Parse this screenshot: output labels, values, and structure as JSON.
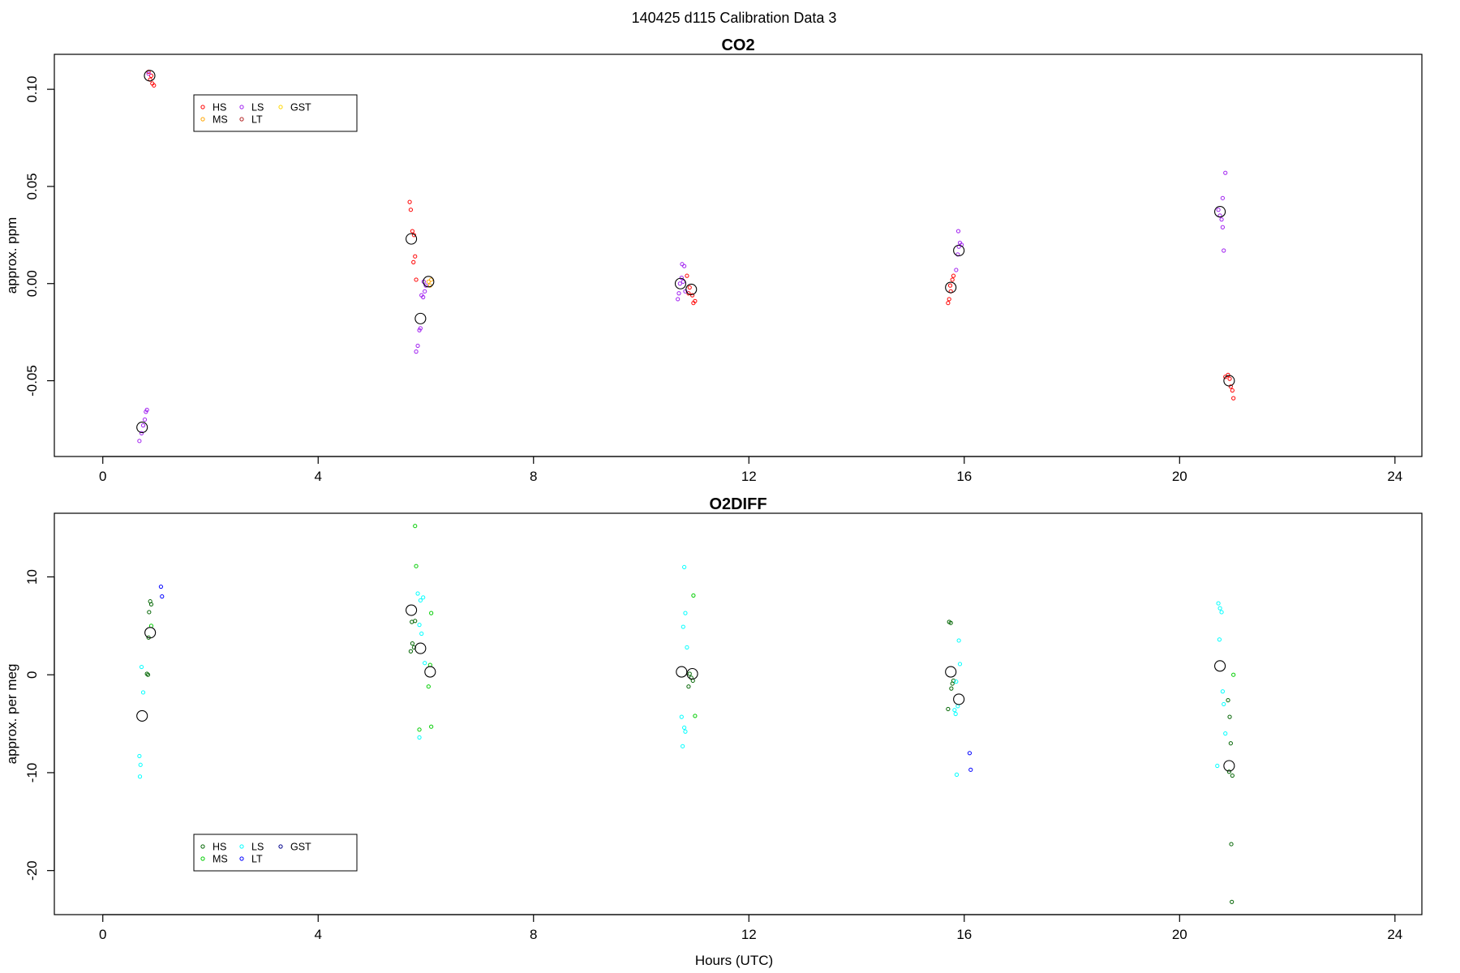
{
  "figure": {
    "super_title": "140425   d115   Calibration Data 3",
    "xlabel": "Hours (UTC)"
  },
  "chart_data": [
    {
      "type": "scatter",
      "title": "CO2",
      "xlabel": "",
      "ylabel": "approx. ppm",
      "xlim": [
        -0.9,
        24.5
      ],
      "ylim": [
        -0.089,
        0.118
      ],
      "xticks": [
        0,
        4,
        8,
        12,
        16,
        20,
        24
      ],
      "yticks": [
        -0.05,
        0.0,
        0.05,
        0.1
      ],
      "ytick_labels": [
        "-0.05",
        "0.00",
        "0.05",
        "0.10"
      ],
      "grid": false,
      "legend": {
        "placement": "top-left",
        "entries": [
          {
            "name": "HS",
            "color": "#ff0000"
          },
          {
            "name": "MS",
            "color": "#ffa500"
          },
          {
            "name": "LS",
            "color": "#a020f0"
          },
          {
            "name": "LT",
            "color": "#b22222"
          },
          {
            "name": "GST",
            "color": "#ffd700"
          }
        ]
      },
      "series": [
        {
          "name": "HS",
          "color": "#ff0000",
          "points": [
            [
              0.85,
              0.109
            ],
            [
              0.9,
              0.107
            ],
            [
              0.92,
              0.103
            ],
            [
              0.95,
              0.102
            ],
            [
              0.88,
              0.105
            ],
            [
              5.7,
              0.042
            ],
            [
              5.72,
              0.038
            ],
            [
              5.75,
              0.027
            ],
            [
              5.78,
              0.025
            ],
            [
              5.8,
              0.014
            ],
            [
              5.77,
              0.011
            ],
            [
              5.82,
              0.002
            ],
            [
              10.85,
              0.004
            ],
            [
              10.9,
              -0.002
            ],
            [
              10.95,
              -0.006
            ],
            [
              11.0,
              -0.009
            ],
            [
              10.97,
              -0.01
            ],
            [
              10.88,
              -0.005
            ],
            [
              15.7,
              -0.01
            ],
            [
              15.72,
              -0.008
            ],
            [
              15.75,
              -0.004
            ],
            [
              15.78,
              0.002
            ],
            [
              15.8,
              0.004
            ],
            [
              15.74,
              -0.001
            ],
            [
              20.85,
              -0.048
            ],
            [
              20.9,
              -0.047
            ],
            [
              20.93,
              -0.049
            ],
            [
              20.95,
              -0.053
            ],
            [
              20.98,
              -0.055
            ],
            [
              21.0,
              -0.059
            ]
          ]
        },
        {
          "name": "MS",
          "color": "#ffa500",
          "points": [
            [
              6.05,
              0.001
            ],
            [
              6.1,
              0.002
            ],
            [
              6.08,
              -0.001
            ]
          ]
        },
        {
          "name": "LS",
          "color": "#a020f0",
          "points": [
            [
              0.68,
              -0.081
            ],
            [
              0.72,
              -0.077
            ],
            [
              0.75,
              -0.073
            ],
            [
              0.78,
              -0.07
            ],
            [
              0.8,
              -0.066
            ],
            [
              0.82,
              -0.065
            ],
            [
              0.85,
              0.108
            ],
            [
              5.82,
              -0.035
            ],
            [
              5.85,
              -0.032
            ],
            [
              5.88,
              -0.024
            ],
            [
              5.9,
              -0.023
            ],
            [
              5.92,
              -0.006
            ],
            [
              5.95,
              -0.007
            ],
            [
              5.98,
              -0.004
            ],
            [
              6.0,
              -0.001
            ],
            [
              5.96,
              0.001
            ],
            [
              10.68,
              -0.008
            ],
            [
              10.7,
              -0.005
            ],
            [
              10.72,
              0.0
            ],
            [
              10.75,
              0.003
            ],
            [
              10.78,
              0.001
            ],
            [
              10.8,
              0.009
            ],
            [
              10.76,
              0.01
            ],
            [
              10.82,
              -0.004
            ],
            [
              15.85,
              0.007
            ],
            [
              15.88,
              0.015
            ],
            [
              15.9,
              0.019
            ],
            [
              15.92,
              0.021
            ],
            [
              15.95,
              0.02
            ],
            [
              15.89,
              0.027
            ],
            [
              20.72,
              0.038
            ],
            [
              20.75,
              0.035
            ],
            [
              20.78,
              0.033
            ],
            [
              20.8,
              0.029
            ],
            [
              20.82,
              0.017
            ],
            [
              20.8,
              0.044
            ],
            [
              20.85,
              0.057
            ]
          ]
        },
        {
          "name": "mean",
          "color": "#000000",
          "marker": "large-circle",
          "points": [
            [
              0.87,
              0.107
            ],
            [
              0.73,
              -0.074
            ],
            [
              5.73,
              0.023
            ],
            [
              5.9,
              -0.018
            ],
            [
              6.05,
              0.001
            ],
            [
              10.73,
              0.0
            ],
            [
              10.93,
              -0.003
            ],
            [
              15.75,
              -0.002
            ],
            [
              15.9,
              0.017
            ],
            [
              20.75,
              0.037
            ],
            [
              20.92,
              -0.05
            ]
          ]
        }
      ]
    },
    {
      "type": "scatter",
      "title": "O2DIFF",
      "xlabel": "Hours (UTC)",
      "ylabel": "approx. per meg",
      "xlim": [
        -0.9,
        24.5
      ],
      "ylim": [
        -24.5,
        16.5
      ],
      "xticks": [
        0,
        4,
        8,
        12,
        16,
        20,
        24
      ],
      "yticks": [
        -20,
        -10,
        0,
        10
      ],
      "ytick_labels": [
        "-20",
        "-10",
        "0",
        "10"
      ],
      "grid": false,
      "legend": {
        "placement": "bottom-left",
        "entries": [
          {
            "name": "HS",
            "color": "#006400"
          },
          {
            "name": "MS",
            "color": "#00cd00"
          },
          {
            "name": "LS",
            "color": "#00ffff"
          },
          {
            "name": "LT",
            "color": "#0000ff"
          },
          {
            "name": "GST",
            "color": "#00008b"
          }
        ]
      },
      "series": [
        {
          "name": "HS",
          "color": "#006400",
          "points": [
            [
              0.88,
              7.5
            ],
            [
              0.9,
              7.2
            ],
            [
              0.86,
              6.4
            ],
            [
              0.85,
              3.8
            ],
            [
              0.82,
              0.1
            ],
            [
              0.84,
              0.0
            ],
            [
              5.72,
              2.4
            ],
            [
              5.75,
              3.2
            ],
            [
              5.78,
              2.8
            ],
            [
              5.8,
              5.5
            ],
            [
              5.74,
              5.4
            ],
            [
              10.9,
              0.1
            ],
            [
              10.93,
              -0.3
            ],
            [
              10.96,
              -0.6
            ],
            [
              10.88,
              -1.2
            ],
            [
              15.72,
              5.4
            ],
            [
              15.75,
              5.3
            ],
            [
              15.78,
              -0.9
            ],
            [
              15.8,
              -0.6
            ],
            [
              15.76,
              -1.4
            ],
            [
              15.7,
              -3.5
            ],
            [
              20.9,
              -2.6
            ],
            [
              20.93,
              -4.3
            ],
            [
              20.95,
              -7.0
            ],
            [
              20.92,
              -9.9
            ],
            [
              20.98,
              -10.3
            ],
            [
              20.96,
              -17.3
            ],
            [
              20.97,
              -23.2
            ]
          ]
        },
        {
          "name": "MS",
          "color": "#00cd00",
          "points": [
            [
              0.9,
              5.0
            ],
            [
              5.8,
              15.2
            ],
            [
              5.82,
              11.1
            ],
            [
              6.1,
              6.3
            ],
            [
              6.08,
              1.0
            ],
            [
              6.05,
              -1.2
            ],
            [
              6.1,
              -5.3
            ],
            [
              5.88,
              -5.6
            ],
            [
              10.97,
              8.1
            ],
            [
              11.0,
              -4.2
            ],
            [
              21.0,
              0.0
            ]
          ]
        },
        {
          "name": "LS",
          "color": "#00ffff",
          "points": [
            [
              0.72,
              0.8
            ],
            [
              0.75,
              -1.8
            ],
            [
              0.68,
              -8.3
            ],
            [
              0.7,
              -9.2
            ],
            [
              0.69,
              -10.4
            ],
            [
              5.85,
              8.3
            ],
            [
              5.9,
              7.6
            ],
            [
              5.95,
              7.9
            ],
            [
              5.88,
              5.1
            ],
            [
              5.92,
              4.2
            ],
            [
              5.98,
              1.2
            ],
            [
              5.88,
              -6.4
            ],
            [
              10.8,
              11.0
            ],
            [
              10.82,
              6.3
            ],
            [
              10.78,
              4.9
            ],
            [
              10.85,
              2.8
            ],
            [
              10.75,
              -4.3
            ],
            [
              10.8,
              -5.4
            ],
            [
              10.82,
              -5.8
            ],
            [
              10.77,
              -7.3
            ],
            [
              15.9,
              3.5
            ],
            [
              15.92,
              1.1
            ],
            [
              15.85,
              -0.7
            ],
            [
              15.88,
              -3.2
            ],
            [
              15.82,
              -3.6
            ],
            [
              15.84,
              -4.0
            ],
            [
              15.86,
              -10.2
            ],
            [
              20.72,
              7.3
            ],
            [
              20.75,
              6.8
            ],
            [
              20.78,
              6.4
            ],
            [
              20.74,
              3.6
            ],
            [
              20.8,
              -1.7
            ],
            [
              20.82,
              -3.0
            ],
            [
              20.85,
              -6.0
            ],
            [
              20.7,
              -9.3
            ]
          ]
        },
        {
          "name": "LT",
          "color": "#0000ff",
          "points": [
            [
              1.08,
              9.0
            ],
            [
              1.1,
              8.0
            ],
            [
              16.1,
              -8.0
            ],
            [
              16.12,
              -9.7
            ]
          ]
        },
        {
          "name": "mean",
          "color": "#000000",
          "marker": "large-circle",
          "points": [
            [
              0.88,
              4.3
            ],
            [
              0.73,
              -4.2
            ],
            [
              5.73,
              6.6
            ],
            [
              5.9,
              2.7
            ],
            [
              6.08,
              0.3
            ],
            [
              10.75,
              0.3
            ],
            [
              10.95,
              0.1
            ],
            [
              15.75,
              0.3
            ],
            [
              15.9,
              -2.5
            ],
            [
              20.75,
              0.9
            ],
            [
              20.92,
              -9.3
            ]
          ]
        }
      ]
    }
  ]
}
